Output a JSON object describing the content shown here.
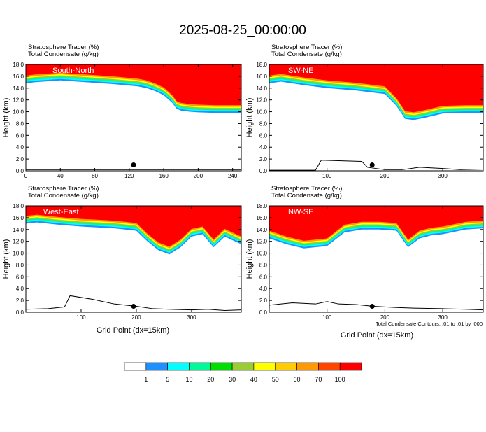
{
  "title": "2025-08-25_00:00:00",
  "panel_subtitle": [
    "Stratosphere Tracer    (%)",
    "Total Condensate    (g/kg)"
  ],
  "y_axis_label": "Height (km)",
  "x_axis_label": "Grid Point (dx=15km)",
  "contour_note": "Total Condensate Contours: .01 to .01 by .000",
  "colorbar": {
    "colors": [
      "#ffffff",
      "#1e90ff",
      "#00ffff",
      "#00fa9a",
      "#00e000",
      "#9acd32",
      "#ffff00",
      "#ffcc00",
      "#ff9900",
      "#ff4500",
      "#ff0000"
    ],
    "labels": [
      "1",
      "5",
      "10",
      "20",
      "30",
      "40",
      "50",
      "60",
      "70",
      "100"
    ]
  },
  "chart_data": [
    {
      "type": "heatmap",
      "panel_label": "South-North",
      "xlim": [
        0,
        250
      ],
      "ylim": [
        0,
        18
      ],
      "xticks": [
        "0",
        "40",
        "80",
        "120",
        "160",
        "200",
        "240"
      ],
      "yticks": [
        "0.0",
        "2.0",
        "4.0",
        "6.0",
        "8.0",
        "10.0",
        "12.0",
        "14.0",
        "16.0",
        "18.0"
      ],
      "tracer_base_km": {
        "x": [
          0,
          10,
          40,
          70,
          100,
          130,
          140,
          150,
          160,
          170,
          175,
          180,
          190,
          200,
          220,
          250
        ],
        "y": [
          14.8,
          15.0,
          15.3,
          15.0,
          14.7,
          14.3,
          14.0,
          13.5,
          12.8,
          11.5,
          10.5,
          10.2,
          10.0,
          9.9,
          9.8,
          9.8
        ]
      },
      "terrain_km": {
        "x": [
          0,
          250
        ],
        "y": [
          0.2,
          0.2
        ]
      },
      "marker": {
        "x": 125,
        "y": 1.0
      }
    },
    {
      "type": "heatmap",
      "panel_label": "SW-NE",
      "xlim": [
        0,
        370
      ],
      "ylim": [
        0,
        18
      ],
      "xticks": [
        "100",
        "200",
        "300"
      ],
      "yticks": [
        "0.0",
        "2.0",
        "4.0",
        "6.0",
        "8.0",
        "10.0",
        "12.0",
        "14.0",
        "16.0",
        "18.0"
      ],
      "tracer_base_km": {
        "x": [
          0,
          20,
          60,
          100,
          150,
          200,
          220,
          235,
          250,
          270,
          300,
          340,
          370
        ],
        "y": [
          14.8,
          15.1,
          14.5,
          14.0,
          13.6,
          13.0,
          11.0,
          8.8,
          8.6,
          9.0,
          9.7,
          9.8,
          9.8
        ]
      },
      "terrain_km": {
        "x": [
          0,
          80,
          90,
          160,
          170,
          200,
          230,
          260,
          300,
          330,
          370
        ],
        "y": [
          0.1,
          0.1,
          1.8,
          1.6,
          0.6,
          0.2,
          0.2,
          0.6,
          0.4,
          0.2,
          0.3
        ]
      },
      "marker": {
        "x": 178,
        "y": 1.0
      }
    },
    {
      "type": "heatmap",
      "panel_label": "West-East",
      "xlim": [
        0,
        390
      ],
      "ylim": [
        0,
        18
      ],
      "xticks": [
        "100",
        "200",
        "300"
      ],
      "yticks": [
        "0.0",
        "2.0",
        "4.0",
        "6.0",
        "8.0",
        "10.0",
        "12.0",
        "14.0",
        "16.0",
        "18.0"
      ],
      "tracer_base_km": {
        "x": [
          0,
          20,
          60,
          100,
          160,
          200,
          220,
          240,
          260,
          280,
          300,
          320,
          340,
          360,
          390
        ],
        "y": [
          15.0,
          15.2,
          14.8,
          14.5,
          14.2,
          13.8,
          12.0,
          10.5,
          9.8,
          11.0,
          12.8,
          13.2,
          11.0,
          12.8,
          11.5
        ]
      },
      "terrain_km": {
        "x": [
          0,
          40,
          70,
          80,
          120,
          160,
          200,
          230,
          260,
          300,
          330,
          360,
          390
        ],
        "y": [
          0.5,
          0.6,
          0.9,
          2.8,
          2.2,
          1.4,
          1.0,
          0.6,
          0.5,
          0.4,
          0.5,
          0.3,
          0.4
        ]
      },
      "marker": {
        "x": 195,
        "y": 1.0
      }
    },
    {
      "type": "heatmap",
      "panel_label": "NW-SE",
      "xlim": [
        0,
        370
      ],
      "ylim": [
        0,
        18
      ],
      "xticks": [
        "100",
        "200",
        "300"
      ],
      "yticks": [
        "0.0",
        "2.0",
        "4.0",
        "6.0",
        "8.0",
        "10.0",
        "12.0",
        "14.0",
        "16.0",
        "18.0"
      ],
      "tracer_base_km": {
        "x": [
          0,
          30,
          60,
          100,
          130,
          160,
          190,
          220,
          240,
          260,
          280,
          300,
          320,
          340,
          370
        ],
        "y": [
          12.5,
          11.5,
          10.8,
          11.2,
          13.5,
          14.0,
          14.0,
          13.8,
          11.0,
          12.5,
          13.0,
          13.2,
          13.6,
          14.0,
          14.2
        ]
      },
      "terrain_km": {
        "x": [
          0,
          40,
          80,
          100,
          120,
          150,
          180,
          220,
          250,
          300,
          340,
          370
        ],
        "y": [
          1.2,
          1.6,
          1.4,
          1.8,
          1.4,
          1.3,
          1.0,
          0.8,
          0.7,
          0.6,
          0.5,
          0.4
        ]
      },
      "marker": {
        "x": 178,
        "y": 1.0
      }
    }
  ]
}
